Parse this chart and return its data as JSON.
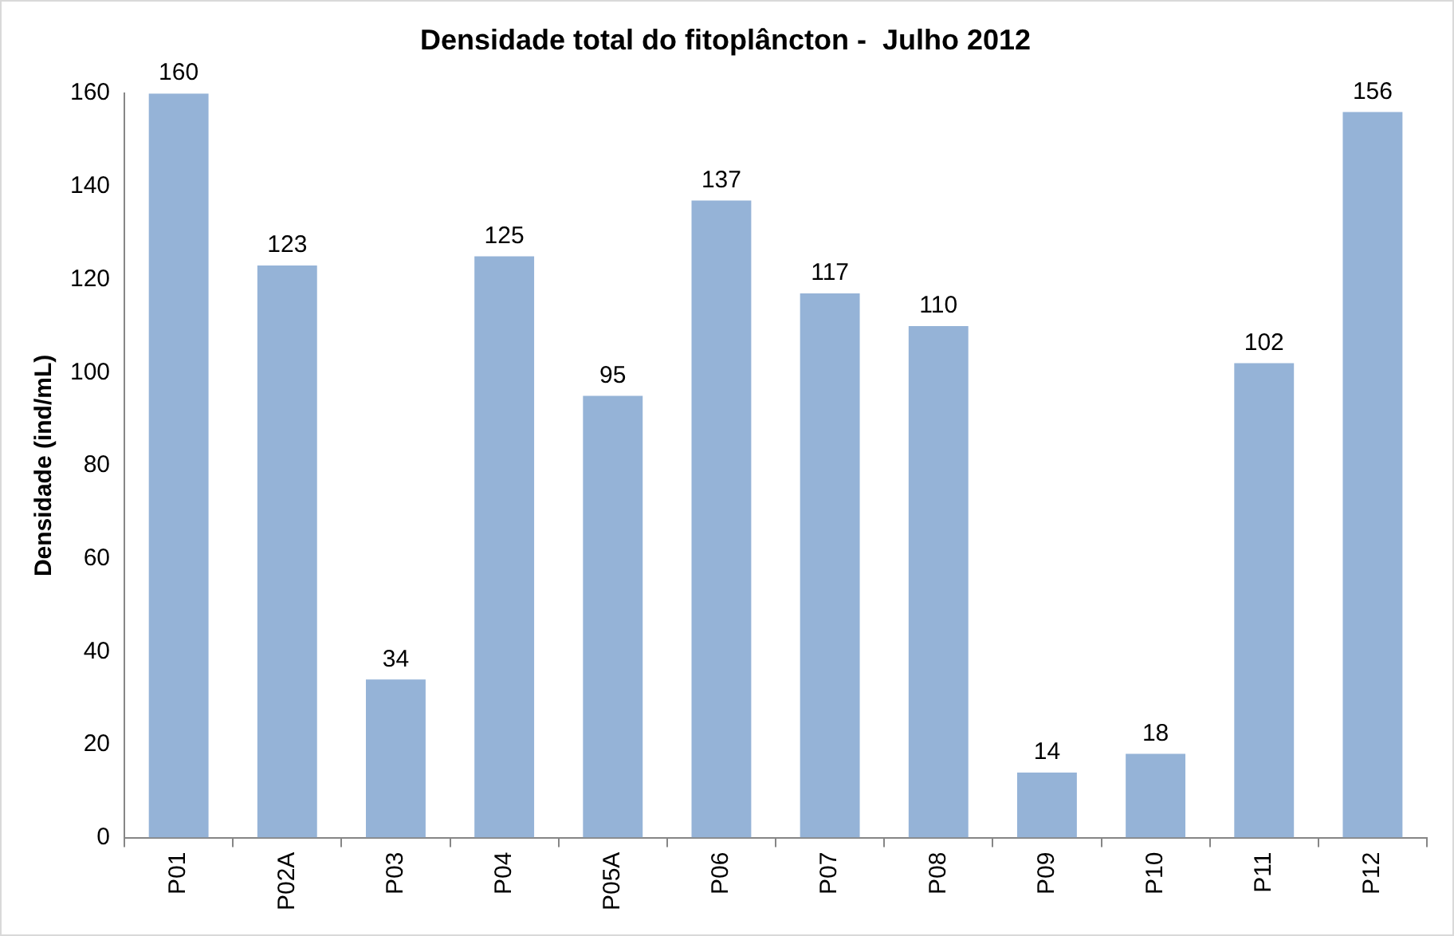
{
  "chart_data": {
    "type": "bar",
    "title": "Densidade total do fitoplâncton -  Julho 2012",
    "ylabel": "Densidade (ind/mL)",
    "categories": [
      "P01",
      "P02A",
      "P03",
      "P04",
      "P05A",
      "P06",
      "P07",
      "P08",
      "P09",
      "P10",
      "P11",
      "P12"
    ],
    "values": [
      160,
      123,
      34,
      125,
      95,
      137,
      117,
      110,
      14,
      18,
      102,
      156
    ],
    "color": "#95b3d7",
    "ylim": [
      0,
      160
    ],
    "yticks": [
      0,
      20,
      40,
      60,
      80,
      100,
      120,
      140,
      160
    ],
    "grid": false,
    "legend": false,
    "data_labels": true
  }
}
